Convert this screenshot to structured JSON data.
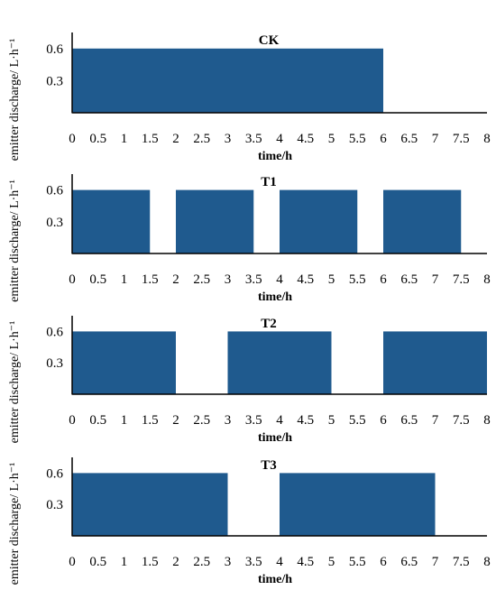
{
  "colors": {
    "bar": "#1f5a8e",
    "axis": "#000000"
  },
  "chart_data": [
    {
      "type": "area",
      "title": "CK",
      "xlabel": "time/h",
      "ylabel": "emitter discharge/ L·h⁻¹",
      "xlim": [
        0,
        8
      ],
      "ylim": [
        0,
        0.75
      ],
      "xticks": [
        "0",
        "0.5",
        "1",
        "1.5",
        "2",
        "2.5",
        "3",
        "3.5",
        "4",
        "4.5",
        "5",
        "5.5",
        "6",
        "6.5",
        "7",
        "7.5",
        "8"
      ],
      "yticks": [
        "0.3",
        "0.6"
      ],
      "segments": [
        {
          "start": 0,
          "end": 6,
          "value": 0.6
        }
      ]
    },
    {
      "type": "area",
      "title": "T1",
      "xlabel": "time/h",
      "ylabel": "emitter discharge/ L·h⁻¹",
      "xlim": [
        0,
        8
      ],
      "ylim": [
        0,
        0.75
      ],
      "xticks": [
        "0",
        "0.5",
        "1",
        "1.5",
        "2",
        "2.5",
        "3",
        "3.5",
        "4",
        "4.5",
        "5",
        "5.5",
        "6",
        "6.5",
        "7",
        "7.5",
        "8"
      ],
      "yticks": [
        "0.3",
        "0.6"
      ],
      "segments": [
        {
          "start": 0,
          "end": 1.5,
          "value": 0.6
        },
        {
          "start": 2,
          "end": 3.5,
          "value": 0.6
        },
        {
          "start": 4,
          "end": 5.5,
          "value": 0.6
        },
        {
          "start": 6,
          "end": 7.5,
          "value": 0.6
        }
      ]
    },
    {
      "type": "area",
      "title": "T2",
      "xlabel": "time/h",
      "ylabel": "emitter discharge/ L·h⁻¹",
      "xlim": [
        0,
        8
      ],
      "ylim": [
        0,
        0.75
      ],
      "xticks": [
        "0",
        "0.5",
        "1",
        "1.5",
        "2",
        "2.5",
        "3",
        "3.5",
        "4",
        "4.5",
        "5",
        "5.5",
        "6",
        "6.5",
        "7",
        "7.5",
        "8"
      ],
      "yticks": [
        "0.3",
        "0.6"
      ],
      "segments": [
        {
          "start": 0,
          "end": 2,
          "value": 0.6
        },
        {
          "start": 3,
          "end": 5,
          "value": 0.6
        },
        {
          "start": 6,
          "end": 8,
          "value": 0.6
        }
      ]
    },
    {
      "type": "area",
      "title": "T3",
      "xlabel": "time/h",
      "ylabel": "emitter discharge/ L·h⁻¹",
      "xlim": [
        0,
        8
      ],
      "ylim": [
        0,
        0.75
      ],
      "xticks": [
        "0",
        "0.5",
        "1",
        "1.5",
        "2",
        "2.5",
        "3",
        "3.5",
        "4",
        "4.5",
        "5",
        "5.5",
        "6",
        "6.5",
        "7",
        "7.5",
        "8"
      ],
      "yticks": [
        "0.3",
        "0.6"
      ],
      "segments": [
        {
          "start": 0,
          "end": 3,
          "value": 0.6
        },
        {
          "start": 4,
          "end": 7,
          "value": 0.6
        }
      ]
    }
  ]
}
